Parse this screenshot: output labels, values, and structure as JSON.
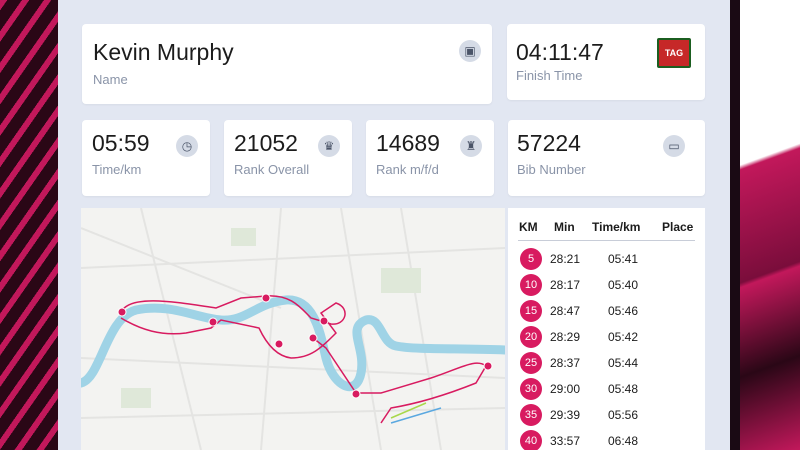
{
  "runner": {
    "name": "Kevin Murphy",
    "name_label": "Name",
    "finish_time": "04:11:47",
    "finish_time_label": "Finish Time",
    "sponsor_logo_text": "TAG"
  },
  "stats": [
    {
      "value": "05:59",
      "label": "Time/km",
      "icon": "timer-icon"
    },
    {
      "value": "21052",
      "label": "Rank Overall",
      "icon": "crown-icon"
    },
    {
      "value": "14689",
      "label": "Rank m/f/d",
      "icon": "trophy-icon"
    },
    {
      "value": "57224",
      "label": "Bib Number",
      "icon": "ticket-icon"
    }
  ],
  "splits": {
    "headers": [
      "KM",
      "Min",
      "Time/km",
      "Place"
    ],
    "rows": [
      {
        "km": "5",
        "min": "28:21",
        "pace": "05:41"
      },
      {
        "km": "10",
        "min": "28:17",
        "pace": "05:40"
      },
      {
        "km": "15",
        "min": "28:47",
        "pace": "05:46"
      },
      {
        "km": "20",
        "min": "28:29",
        "pace": "05:42"
      },
      {
        "km": "25",
        "min": "28:37",
        "pace": "05:44"
      },
      {
        "km": "30",
        "min": "29:00",
        "pace": "05:48"
      },
      {
        "km": "35",
        "min": "29:39",
        "pace": "05:56"
      },
      {
        "km": "40",
        "min": "33:57",
        "pace": "06:48"
      }
    ]
  },
  "colors": {
    "accent": "#d81b60",
    "route": "#d81b60",
    "river": "#9fd3e6"
  }
}
